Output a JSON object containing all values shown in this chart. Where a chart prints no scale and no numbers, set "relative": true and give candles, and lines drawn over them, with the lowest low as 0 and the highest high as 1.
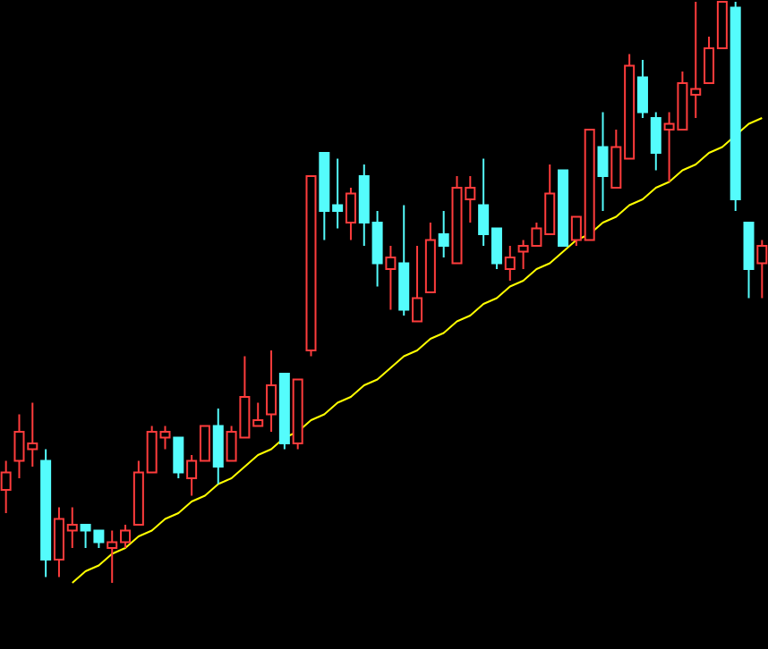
{
  "chart_data": {
    "type": "candlestick",
    "relative": true,
    "categories": [
      null,
      null,
      null,
      null,
      null,
      null,
      null,
      null,
      null,
      null,
      null,
      null,
      null,
      null,
      null,
      null,
      null,
      null,
      null,
      null,
      null,
      null,
      null,
      null,
      null,
      null,
      null,
      null,
      null,
      null,
      null,
      null,
      null,
      null,
      null,
      null,
      null,
      null,
      null,
      null,
      null,
      null,
      null,
      null,
      null,
      null,
      null,
      null,
      null,
      null,
      null,
      null,
      null,
      null,
      null,
      null,
      null,
      null
    ],
    "ohlc": [
      [
        0.16,
        0.21,
        0.12,
        0.19
      ],
      [
        0.21,
        0.29,
        0.18,
        0.26
      ],
      [
        0.23,
        0.31,
        0.2,
        0.24
      ],
      [
        0.21,
        0.23,
        0.01,
        0.04
      ],
      [
        0.04,
        0.13,
        0.01,
        0.11
      ],
      [
        0.09,
        0.13,
        0.06,
        0.1
      ],
      [
        0.1,
        0.1,
        0.06,
        0.09
      ],
      [
        0.09,
        0.09,
        0.06,
        0.07
      ],
      [
        0.06,
        0.09,
        0.0,
        0.07
      ],
      [
        0.07,
        0.1,
        0.06,
        0.09
      ],
      [
        0.1,
        0.21,
        0.1,
        0.19
      ],
      [
        0.19,
        0.27,
        0.19,
        0.26
      ],
      [
        0.25,
        0.27,
        0.23,
        0.26
      ],
      [
        0.25,
        0.25,
        0.18,
        0.19
      ],
      [
        0.18,
        0.22,
        0.15,
        0.21
      ],
      [
        0.21,
        0.27,
        0.21,
        0.27
      ],
      [
        0.27,
        0.3,
        0.17,
        0.2
      ],
      [
        0.21,
        0.27,
        0.21,
        0.26
      ],
      [
        0.25,
        0.39,
        0.25,
        0.32
      ],
      [
        0.27,
        0.31,
        0.27,
        0.28
      ],
      [
        0.29,
        0.4,
        0.26,
        0.34
      ],
      [
        0.36,
        0.36,
        0.23,
        0.24
      ],
      [
        0.24,
        0.35,
        0.23,
        0.35
      ],
      [
        0.4,
        0.7,
        0.39,
        0.7
      ],
      [
        0.74,
        0.74,
        0.59,
        0.64
      ],
      [
        0.65,
        0.73,
        0.61,
        0.64
      ],
      [
        0.62,
        0.68,
        0.59,
        0.67
      ],
      [
        0.7,
        0.72,
        0.58,
        0.62
      ],
      [
        0.62,
        0.64,
        0.51,
        0.55
      ],
      [
        0.54,
        0.58,
        0.47,
        0.56
      ],
      [
        0.55,
        0.65,
        0.46,
        0.47
      ],
      [
        0.45,
        0.58,
        0.45,
        0.49
      ],
      [
        0.5,
        0.62,
        0.5,
        0.59
      ],
      [
        0.6,
        0.64,
        0.56,
        0.58
      ],
      [
        0.55,
        0.7,
        0.55,
        0.68
      ],
      [
        0.66,
        0.7,
        0.62,
        0.68
      ],
      [
        0.65,
        0.73,
        0.58,
        0.6
      ],
      [
        0.61,
        0.61,
        0.54,
        0.55
      ],
      [
        0.54,
        0.58,
        0.52,
        0.56
      ],
      [
        0.57,
        0.59,
        0.54,
        0.58
      ],
      [
        0.58,
        0.62,
        0.58,
        0.61
      ],
      [
        0.6,
        0.72,
        0.6,
        0.67
      ],
      [
        0.71,
        0.71,
        0.58,
        0.58
      ],
      [
        0.59,
        0.63,
        0.58,
        0.63
      ],
      [
        0.59,
        0.78,
        0.59,
        0.78
      ],
      [
        0.75,
        0.81,
        0.64,
        0.7
      ],
      [
        0.68,
        0.78,
        0.68,
        0.75
      ],
      [
        0.73,
        0.91,
        0.73,
        0.89
      ],
      [
        0.87,
        0.9,
        0.8,
        0.81
      ],
      [
        0.8,
        0.81,
        0.71,
        0.74
      ],
      [
        0.78,
        0.81,
        0.69,
        0.79
      ],
      [
        0.78,
        0.88,
        0.78,
        0.86
      ],
      [
        0.84,
        1.0,
        0.8,
        0.85
      ],
      [
        0.86,
        0.94,
        0.86,
        0.92
      ],
      [
        0.92,
        1.0,
        0.92,
        1.0
      ],
      [
        0.99,
        1.0,
        0.64,
        0.66
      ],
      [
        0.62,
        0.62,
        0.49,
        0.54
      ],
      [
        0.55,
        0.59,
        0.49,
        0.58
      ]
    ],
    "colors": [
      "#ff3c3c",
      "#ff3c3c",
      "#ff3c3c",
      "#54fcfc",
      "#ff3c3c",
      "#ff3c3c",
      "#54fcfc",
      "#54fcfc",
      "#ff3c3c",
      "#ff3c3c",
      "#ff3c3c",
      "#ff3c3c",
      "#ff3c3c",
      "#54fcfc",
      "#ff3c3c",
      "#ff3c3c",
      "#54fcfc",
      "#ff3c3c",
      "#ff3c3c",
      "#ff3c3c",
      "#ff3c3c",
      "#54fcfc",
      "#ff3c3c",
      "#ff3c3c",
      "#54fcfc",
      "#54fcfc",
      "#ff3c3c",
      "#54fcfc",
      "#54fcfc",
      "#ff3c3c",
      "#54fcfc",
      "#ff3c3c",
      "#ff3c3c",
      "#54fcfc",
      "#ff3c3c",
      "#ff3c3c",
      "#54fcfc",
      "#54fcfc",
      "#ff3c3c",
      "#ff3c3c",
      "#ff3c3c",
      "#ff3c3c",
      "#54fcfc",
      "#ff3c3c",
      "#ff3c3c",
      "#54fcfc",
      "#ff3c3c",
      "#ff3c3c",
      "#54fcfc",
      "#54fcfc",
      "#ff3c3c",
      "#ff3c3c",
      "#ff3c3c",
      "#ff3c3c",
      "#ff3c3c",
      "#54fcfc",
      "#54fcfc",
      "#ff3c3c"
    ],
    "series": [
      {
        "type": "line",
        "color": "#ffff00",
        "values": [
          null,
          null,
          null,
          null,
          null,
          0.0,
          0.02,
          0.03,
          0.05,
          0.06,
          0.08,
          0.09,
          0.11,
          0.12,
          0.14,
          0.15,
          0.17,
          0.18,
          0.2,
          0.22,
          0.23,
          0.25,
          0.26,
          0.28,
          0.29,
          0.31,
          0.32,
          0.34,
          0.35,
          0.37,
          0.39,
          0.4,
          0.42,
          0.43,
          0.45,
          0.46,
          0.48,
          0.49,
          0.51,
          0.52,
          0.54,
          0.55,
          0.57,
          0.59,
          0.6,
          0.62,
          0.63,
          0.65,
          0.66,
          0.68,
          0.69,
          0.71,
          0.72,
          0.74,
          0.75,
          0.77,
          0.79,
          0.8
        ]
      }
    ]
  }
}
